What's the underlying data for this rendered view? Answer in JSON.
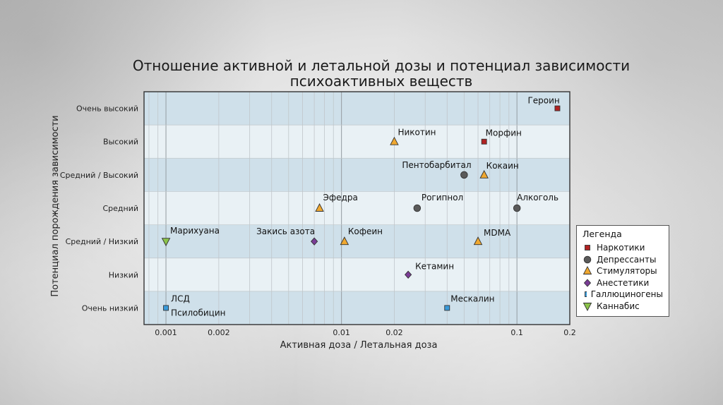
{
  "title": {
    "line1": "Отношение активной и летальной дозы и потенциал зависимости",
    "line2": "психоактивных веществ"
  },
  "chart_data": {
    "type": "scatter",
    "xscale": "log",
    "xlim": [
      0.00075,
      0.2
    ],
    "xticks": [
      {
        "value": 0.001,
        "label": "0.001"
      },
      {
        "value": 0.002,
        "label": "0.002"
      },
      {
        "value": 0.01,
        "label": "0.01"
      },
      {
        "value": 0.02,
        "label": "0.02"
      },
      {
        "value": 0.1,
        "label": "0.1"
      },
      {
        "value": 0.2,
        "label": "0.2"
      }
    ],
    "xlabel": "Активная доза / Летальная доза",
    "ylabel": "Потенциал порождения зависимости",
    "ylevels": [
      "Очень низкий",
      "Низкий",
      "Средний / Низкий",
      "Средний",
      "Средний / Высокий",
      "Высокий",
      "Очень высокий"
    ],
    "series_colors": {
      "narcotics": "#b22222",
      "depressants": "#5a5a5a",
      "stimulants": "#f0a830",
      "anesthetics": "#7a3c96",
      "hallucinogens": "#3a9ad9",
      "cannabis": "#8bc34a"
    },
    "series": [
      {
        "key": "narcotics",
        "name": "Наркотики",
        "marker": "square",
        "points": [
          {
            "label": "Героин",
            "x": 0.17,
            "y": 6
          },
          {
            "label": "Морфин",
            "x": 0.065,
            "y": 5
          }
        ]
      },
      {
        "key": "depressants",
        "name": "Депрессанты",
        "marker": "circle",
        "points": [
          {
            "label": "Пентобарбитал",
            "x": 0.05,
            "y": 4
          },
          {
            "label": "Рогипнол",
            "x": 0.027,
            "y": 3
          },
          {
            "label": "Алкоголь",
            "x": 0.1,
            "y": 3
          }
        ]
      },
      {
        "key": "stimulants",
        "name": "Стимуляторы",
        "marker": "triangle",
        "points": [
          {
            "label": "Никотин",
            "x": 0.02,
            "y": 5
          },
          {
            "label": "Кокаин",
            "x": 0.065,
            "y": 4
          },
          {
            "label": "Эфедра",
            "x": 0.0075,
            "y": 3
          },
          {
            "label": "Кофеин",
            "x": 0.0104,
            "y": 2
          },
          {
            "label": "MDMA",
            "x": 0.06,
            "y": 2
          }
        ]
      },
      {
        "key": "anesthetics",
        "name": "Анестетики",
        "marker": "diamond",
        "points": [
          {
            "label": "Закись азота",
            "x": 0.007,
            "y": 2
          },
          {
            "label": "Кетамин",
            "x": 0.024,
            "y": 1
          }
        ]
      },
      {
        "key": "hallucinogens",
        "name": "Галлюциногены",
        "marker": "square",
        "points": [
          {
            "label": "ЛСД",
            "x": 0.001,
            "y": 0
          },
          {
            "label": "Псилобицин",
            "x": 0.001,
            "y": 0
          },
          {
            "label": "Мескалин",
            "x": 0.04,
            "y": 0
          }
        ]
      },
      {
        "key": "cannabis",
        "name": "Каннабис",
        "marker": "triangle-down",
        "points": [
          {
            "label": "Марихуана",
            "x": 0.001,
            "y": 2
          }
        ]
      }
    ],
    "legend_title": "Легенда",
    "legend_position": "right"
  }
}
